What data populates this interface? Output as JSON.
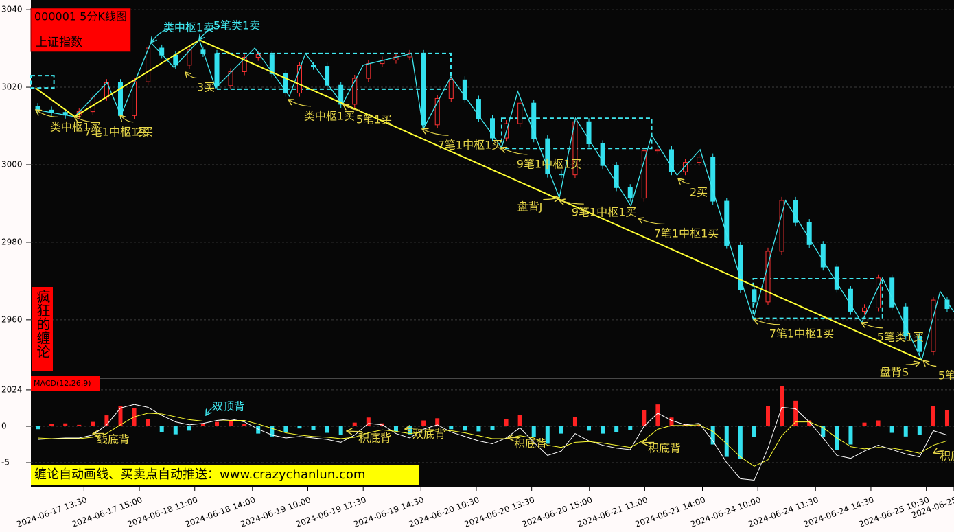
{
  "header": {
    "title": "000001 5分K线图",
    "name": "上证指数"
  },
  "banner": "疯狂的缠论",
  "footer": "缠论自动画线、买卖点自动推送：www.crazychanlun.com",
  "chart_data": [
    {
      "type": "candlestick",
      "xlim": [
        0,
        400
      ],
      "ylim": [
        2945.1,
        3042.5
      ],
      "grid": true,
      "yticks": [
        2960,
        2980,
        3000,
        3020,
        3040
      ],
      "xticks": [
        {
          "value": 23,
          "label": "2024-06-17 13:30"
        },
        {
          "value": 47,
          "label": "2024-06-17 15:00"
        },
        {
          "value": 71,
          "label": "2024-06-18 11:00"
        },
        {
          "value": 96,
          "label": "2024-06-18 14:00"
        },
        {
          "value": 120,
          "label": "2024-06-19 10:00"
        },
        {
          "value": 144,
          "label": "2024-06-19 11:30"
        },
        {
          "value": 169,
          "label": "2024-06-19 14:30"
        },
        {
          "value": 193,
          "label": "2024-06-20 10:30"
        },
        {
          "value": 217,
          "label": "2024-06-20 13:30"
        },
        {
          "value": 242,
          "label": "2024-06-20 15:00"
        },
        {
          "value": 266,
          "label": "2024-06-21 11:00"
        },
        {
          "value": 291,
          "label": "2024-06-21 14:00"
        },
        {
          "value": 315,
          "label": "2024-06-24 10:00"
        },
        {
          "value": 340,
          "label": "2024-06-24 11:30"
        },
        {
          "value": 364,
          "label": "2024-06-24 14:30"
        },
        {
          "value": 388,
          "label": "2024-06-25 10:30"
        },
        {
          "value": 400,
          "label": "2024-06-25"
        }
      ],
      "up_color": "#ff3333",
      "down_color": "#33e0ee",
      "candles": {
        "open": [
          3015.0,
          3014.1,
          3013.5,
          3012.8,
          3013.7,
          3017.4,
          3021.2,
          3012.7,
          3021.4,
          3030.1,
          3028.3,
          3025.7,
          3029.6,
          3028.7,
          3020.4,
          3024.0,
          3027.7,
          3028.4,
          3023.5,
          3018.5,
          3025.6,
          3025.4,
          3020.5,
          3015.6,
          3022.3,
          3026.1,
          3027.0,
          3027.8,
          3028.7,
          3010.3,
          3017.1,
          3021.9,
          3016.9,
          3011.9,
          3006.9,
          3010.6,
          3015.9,
          3006.7,
          2997.6,
          2997.4,
          3011.1,
          3005.4,
          2999.8,
          2994.1,
          2991.4,
          3003.6,
          3003.9,
          2998.2,
          3000.6,
          3002.0,
          2990.6,
          2979.2,
          2967.8,
          2964.6,
          2977.7,
          2990.8,
          2985.1,
          2979.4,
          2973.6,
          2967.9,
          2962.2,
          2963.1,
          2970.8,
          2963.3,
          2955.8,
          2951.8,
          2965.1
        ],
        "close": [
          3014.1,
          3013.5,
          3012.8,
          3013.7,
          3017.4,
          3021.2,
          3012.7,
          3021.4,
          3030.1,
          3028.3,
          3025.7,
          3029.6,
          3028.7,
          3020.4,
          3024.0,
          3027.7,
          3028.4,
          3023.5,
          3018.5,
          3025.6,
          3025.4,
          3020.5,
          3015.6,
          3022.3,
          3026.1,
          3027.0,
          3027.8,
          3028.7,
          3010.3,
          3017.1,
          3021.9,
          3016.9,
          3011.9,
          3006.9,
          3010.6,
          3015.9,
          3006.7,
          2997.6,
          2997.4,
          3011.1,
          3005.4,
          2999.8,
          2994.1,
          2991.4,
          3003.6,
          3003.9,
          2998.2,
          3000.6,
          3002.0,
          2990.6,
          2979.2,
          2967.8,
          2964.6,
          2977.7,
          2990.8,
          2985.1,
          2979.4,
          2973.6,
          2967.9,
          2962.2,
          2963.1,
          2970.8,
          2963.3,
          2955.8,
          2951.8,
          2965.1,
          2962.9
        ],
        "high": [
          3015.9,
          3015.0,
          3014.4,
          3014.6,
          3018.3,
          3022.1,
          3022.1,
          3022.3,
          3031.0,
          3031.0,
          3029.2,
          3030.5,
          3030.5,
          3029.6,
          3024.9,
          3028.6,
          3029.3,
          3029.3,
          3024.4,
          3026.5,
          3026.5,
          3026.3,
          3021.4,
          3023.2,
          3027.0,
          3027.9,
          3028.7,
          3029.6,
          3029.6,
          3018.0,
          3022.8,
          3022.8,
          3017.8,
          3012.8,
          3011.5,
          3016.8,
          3016.8,
          3007.6,
          2998.5,
          3012.0,
          3012.0,
          3006.3,
          3000.7,
          2995.0,
          3004.5,
          3004.8,
          3004.8,
          3001.5,
          3002.9,
          3002.9,
          2991.5,
          2980.1,
          2968.7,
          2978.6,
          2991.7,
          2991.7,
          2986.0,
          2980.3,
          2974.5,
          2968.8,
          2964.0,
          2971.7,
          2971.7,
          2964.2,
          2956.7,
          2966.0,
          2966.0
        ],
        "low": [
          3013.2,
          3012.6,
          3011.9,
          3011.9,
          3012.8,
          3016.5,
          3011.8,
          3011.8,
          3020.5,
          3027.4,
          3024.8,
          3024.8,
          3027.8,
          3019.5,
          3019.5,
          3023.1,
          3026.8,
          3022.6,
          3017.6,
          3017.6,
          3024.5,
          3019.6,
          3014.7,
          3014.7,
          3021.4,
          3025.2,
          3026.1,
          3026.9,
          3009.4,
          3009.4,
          3016.2,
          3016.0,
          3011.0,
          3006.0,
          3006.0,
          3009.7,
          3005.8,
          2996.7,
          2996.5,
          2996.5,
          3004.5,
          2998.9,
          2993.2,
          2990.5,
          2990.5,
          3002.7,
          2997.3,
          2997.3,
          2999.7,
          2989.7,
          2978.3,
          2966.9,
          2963.7,
          2963.7,
          2976.8,
          2984.2,
          2978.5,
          2972.7,
          2967.0,
          2961.3,
          2961.3,
          2962.2,
          2962.4,
          2954.9,
          2950.9,
          2950.9,
          2962.0
        ]
      },
      "bi": {
        "color": "#40e8f0",
        "x": [
          2,
          19,
          33,
          39,
          52,
          62,
          73,
          80,
          97,
          112,
          119,
          135,
          144,
          165,
          170,
          182,
          204,
          211,
          229,
          236,
          260,
          269,
          280,
          290,
          313,
          327,
          360,
          369,
          386,
          394,
          400
        ],
        "values": [
          3014.2,
          3012.4,
          3021.2,
          3012.7,
          3031.5,
          3025.1,
          3032.2,
          3019.8,
          3030.1,
          3017.7,
          3028.7,
          3015.6,
          3025.7,
          3028.7,
          3009.2,
          3022.7,
          3004.4,
          3018.9,
          2991.5,
          3012.0,
          2989.4,
          3007.6,
          2997.3,
          3003.9,
          2960.2,
          2990.8,
          2959.3,
          2970.8,
          2949.6,
          2967.3,
          2962.0
        ]
      },
      "segment": {
        "color": "#ffff33",
        "x": [
          2,
          19,
          73,
          386
        ],
        "values": [
          3019.8,
          3012.4,
          3032.2,
          2949.6
        ]
      },
      "zhongshu_color": "#40e8f0",
      "zhongshu": [
        {
          "start": 0,
          "end": 10,
          "low": 3019.8,
          "high": 3023.0
        },
        {
          "start": 80,
          "end": 182,
          "low": 3019.5,
          "high": 3028.7
        },
        {
          "start": 204,
          "end": 269,
          "low": 3004.2,
          "high": 3012.0
        },
        {
          "start": 313,
          "end": 369,
          "low": 2960.4,
          "high": 2970.6
        }
      ],
      "annotations": [
        {
          "text": "类中枢1买",
          "color": "#e8d84a"
        },
        {
          "text": "7笔1中枢1买",
          "color": "#e8d84a"
        },
        {
          "text": "2买",
          "color": "#e8d84a"
        },
        {
          "text": "类中枢1卖",
          "color": "#40e8f0"
        },
        {
          "text": "5笔类1卖",
          "color": "#40e8f0"
        },
        {
          "text": "3买",
          "color": "#e8d84a"
        },
        {
          "text": "类中枢1买",
          "color": "#e8d84a"
        },
        {
          "text": "5笔1买",
          "color": "#e8d84a"
        },
        {
          "text": "7笔1中枢1买",
          "color": "#e8d84a"
        },
        {
          "text": "9笔1中枢1买",
          "color": "#e8d84a"
        },
        {
          "text": "盘背J",
          "color": "#e8d84a"
        },
        {
          "text": "9笔1中枢1买",
          "color": "#e8d84a"
        },
        {
          "text": "7笔1中枢1买",
          "color": "#e8d84a"
        },
        {
          "text": "2买",
          "color": "#e8d84a"
        },
        {
          "text": "7笔1中枢1买",
          "color": "#e8d84a"
        },
        {
          "text": "5笔类1买",
          "color": "#e8d84a"
        },
        {
          "text": "盘背S",
          "color": "#e8d84a"
        },
        {
          "text": "5笔",
          "color": "#e8d84a"
        }
      ]
    },
    {
      "type": "macd",
      "title": "MACD(12,26,9)",
      "ylim": [
        -8.2,
        6.5
      ],
      "grid": true,
      "yticks": [
        {
          "value": 5,
          "label": "2024"
        },
        0,
        -5
      ],
      "up_color": "#ff2222",
      "down_color": "#33e0ee",
      "macd": [
        -0.4,
        0.3,
        0.4,
        0.2,
        0.6,
        1.5,
        2.8,
        2.5,
        1.0,
        -0.8,
        -1.1,
        -0.6,
        0.4,
        0.6,
        0.8,
        0.3,
        -1.0,
        -1.4,
        -0.8,
        -0.3,
        -0.5,
        -0.9,
        -1.2,
        0.5,
        1.2,
        0.4,
        -0.7,
        -1.1,
        0.8,
        1.1,
        -0.4,
        -0.6,
        -0.7,
        -0.5,
        1.0,
        1.6,
        -1.5,
        -2.4,
        -1.0,
        1.3,
        -0.6,
        -1.0,
        -0.8,
        -0.5,
        2.2,
        3.0,
        1.2,
        0.3,
        0.2,
        -2.5,
        -4.2,
        -4.5,
        -1.5,
        2.8,
        5.5,
        3.5,
        0.8,
        -1.5,
        -3.3,
        -2.5,
        0.5,
        0.8,
        -0.9,
        -1.4,
        -1.2,
        2.8,
        2.2
      ],
      "series": [
        {
          "name": "DIF",
          "color": "#ffffff",
          "values": [
            -1.8,
            -1.7,
            -1.6,
            -1.6,
            -1.2,
            0.2,
            2.5,
            3.0,
            2.6,
            1.5,
            0.6,
            0.2,
            0.4,
            0.8,
            1.0,
            0.6,
            -0.4,
            -1.2,
            -1.6,
            -1.4,
            -1.6,
            -1.8,
            -2.2,
            -1.2,
            0.4,
            0.2,
            -1.0,
            -1.6,
            -0.4,
            0.2,
            -0.8,
            -1.4,
            -2.0,
            -2.4,
            -1.6,
            -0.2,
            -2.2,
            -4.0,
            -3.4,
            -1.0,
            -2.0,
            -2.6,
            -3.0,
            -3.2,
            0.0,
            1.8,
            0.8,
            0.2,
            0.4,
            -2.0,
            -5.0,
            -7.2,
            -7.4,
            -3.0,
            2.6,
            2.4,
            0.6,
            -1.6,
            -4.0,
            -4.4,
            -3.4,
            -2.6,
            -3.2,
            -3.8,
            -4.2,
            -0.6,
            -1.2
          ]
        },
        {
          "name": "DEA",
          "color": "#ffff33",
          "values": [
            -1.6,
            -1.7,
            -1.7,
            -1.7,
            -1.5,
            -1.0,
            0.2,
            1.3,
            1.8,
            1.7,
            1.3,
            0.9,
            0.7,
            0.7,
            0.8,
            0.8,
            0.3,
            -0.3,
            -0.9,
            -1.2,
            -1.4,
            -1.5,
            -1.7,
            -1.5,
            -0.9,
            -0.5,
            -0.7,
            -1.0,
            -0.8,
            -0.5,
            -0.6,
            -0.9,
            -1.3,
            -1.7,
            -1.7,
            -1.3,
            -1.6,
            -2.6,
            -2.9,
            -2.2,
            -2.1,
            -2.3,
            -2.6,
            -2.9,
            -1.9,
            -0.4,
            0.1,
            0.1,
            0.2,
            -0.7,
            -2.4,
            -4.2,
            -5.5,
            -4.6,
            -1.3,
            0.6,
            0.6,
            -0.2,
            -1.6,
            -2.8,
            -3.1,
            -2.9,
            -3.0,
            -3.3,
            -3.7,
            -2.6,
            -2.0
          ]
        }
      ],
      "annotations": [
        {
          "text": "线底背",
          "color": "#e8d84a"
        },
        {
          "text": "双顶背",
          "color": "#40e8f0"
        },
        {
          "text": "积底背",
          "color": "#e8d84a"
        },
        {
          "text": "双底背",
          "color": "#e8d84a"
        },
        {
          "text": "积底背",
          "color": "#e8d84a"
        },
        {
          "text": "积底背",
          "color": "#e8d84a"
        },
        {
          "text": "积底",
          "color": "#e8d84a"
        }
      ]
    }
  ]
}
